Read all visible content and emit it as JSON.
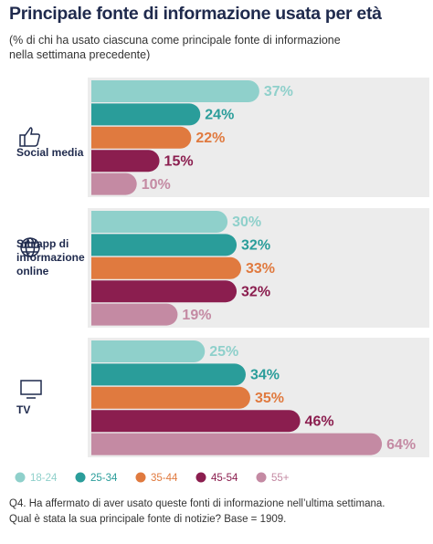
{
  "chart_data": {
    "type": "bar",
    "title": "Principale fonte di informazione usata per età",
    "subtitle": [
      "(% di chi ha usato ciascuna come principale fonte di informazione",
      "nella settimana precedente)"
    ],
    "categories": [
      "Social media",
      "Siti/app di informazione online",
      "TV"
    ],
    "series": [
      {
        "name": "18-24",
        "color": "#8fd0cb",
        "values": [
          37,
          30,
          25
        ],
        "value_labels": [
          "37%",
          "30%",
          "25%"
        ]
      },
      {
        "name": "25-34",
        "color": "#2a9d9a",
        "values": [
          24,
          32,
          34
        ],
        "value_labels": [
          "24%",
          "32%",
          "34%"
        ]
      },
      {
        "name": "35-44",
        "color": "#e07a3f",
        "values": [
          22,
          33,
          35
        ],
        "value_labels": [
          "22%",
          "33%",
          "35%"
        ]
      },
      {
        "name": "45-54",
        "color": "#8b1e4f",
        "values": [
          15,
          32,
          46
        ],
        "value_labels": [
          "15%",
          "32%",
          "46%"
        ]
      },
      {
        "name": "55+",
        "color": "#c48aa3",
        "values": [
          10,
          19,
          64
        ],
        "value_labels": [
          "10%",
          "19%",
          "64%"
        ]
      }
    ],
    "footnote": [
      "Q4. Ha affermato di aver usato queste fonti di informazione nell’ultima settimana.",
      "Qual è stata la sua principale fonte di notizie? Base = 1909."
    ]
  }
}
